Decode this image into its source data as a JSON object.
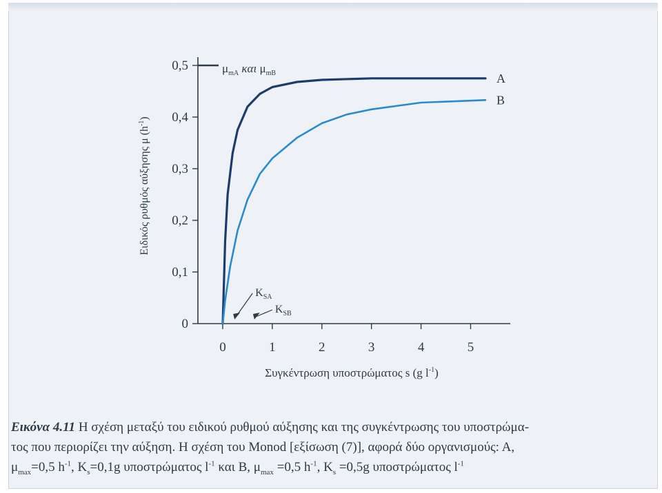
{
  "chart_data": {
    "type": "line",
    "ylabel_main": "Ειδικός ρυθμός αύξησης μ (h",
    "ylabel_sup": "-1",
    "ylabel_end": ")",
    "xlabel_main": "Συγκέντρωση υποστρώματος s (g l",
    "xlabel_sup": "-1",
    "xlabel_end": ")",
    "xlim": [
      -0.5,
      5.8
    ],
    "ylim": [
      0,
      0.5
    ],
    "xticks": [
      "0",
      "1",
      "2",
      "3",
      "4",
      "5"
    ],
    "yticks": [
      "0",
      "0,1",
      "0,2",
      "0,3",
      "0,4",
      "0,5"
    ],
    "grid": false,
    "mumax_label": {
      "mu": "μ",
      "sub_a": "mA",
      "conj": " και ",
      "sub_b": "mB"
    },
    "series": [
      {
        "name": "A",
        "color": "#1c3d6b",
        "x": [
          0,
          0.05,
          0.1,
          0.2,
          0.3,
          0.5,
          0.75,
          1,
          1.5,
          2,
          3,
          4,
          5.3
        ],
        "y": [
          0,
          0.16,
          0.25,
          0.33,
          0.375,
          0.42,
          0.445,
          0.458,
          0.468,
          0.472,
          0.475,
          0.475,
          0.475
        ]
      },
      {
        "name": "B",
        "color": "#2a8ad0",
        "x": [
          0,
          0.05,
          0.15,
          0.3,
          0.5,
          0.75,
          1,
          1.5,
          2,
          2.5,
          3,
          4,
          5.3
        ],
        "y": [
          0,
          0.045,
          0.11,
          0.18,
          0.24,
          0.29,
          0.32,
          0.36,
          0.388,
          0.405,
          0.415,
          0.428,
          0.433
        ]
      }
    ],
    "annotations": [
      {
        "k": "K",
        "sub": "SA",
        "x": 0.1
      },
      {
        "k": "K",
        "sub": "SB",
        "x": 0.5
      }
    ]
  },
  "caption": {
    "title": "Εικόνα 4.11",
    "line1": " Η σχέση μεταξύ του ειδικού ρυθμού αύξησης και της συγκέντρωσης του υποστρώμα-",
    "line2": "τος που περιορίζει την αύξηση.  Η σχέση του Monod [εξίσωση (7)], αφορά δύο οργανισμούς: Α,",
    "mu1_sym": "μ",
    "mu1_sub": "max",
    "mu1_val": "=0,5 h",
    "mu1_sup": "-1",
    "ks1_sym": ", K",
    "ks1_sub": "s",
    "ks1_val": "=0,1g υποστρώματος l",
    "ks1_sup": "-1",
    "mid": " και Β, ",
    "mu2_sym": "μ",
    "mu2_sub": "max",
    "mu2_val": " =0,5 h",
    "mu2_sup": "-1",
    "ks2_sym": ", K",
    "ks2_sub": "s",
    "ks2_val": " =0,5g υποστρώματος l",
    "ks2_sup": "-1"
  }
}
